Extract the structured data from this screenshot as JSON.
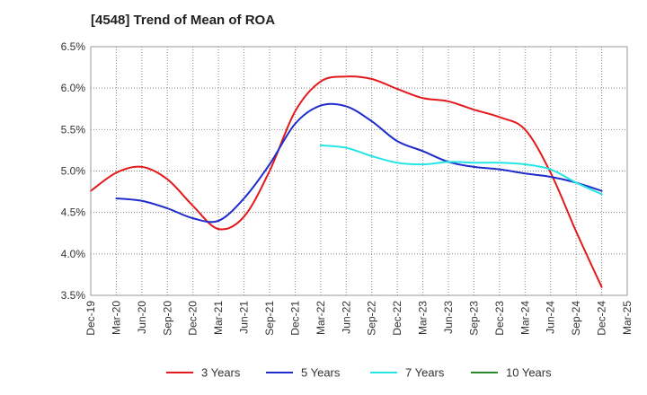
{
  "chart_data": {
    "type": "line",
    "title": "[4548]  Trend of Mean of ROA",
    "xlabel": "",
    "ylabel": "",
    "ylim": [
      3.5,
      6.5
    ],
    "y_ticks": [
      3.5,
      4.0,
      4.5,
      5.0,
      5.5,
      6.0,
      6.5
    ],
    "y_tick_labels": [
      "3.5%",
      "4.0%",
      "4.5%",
      "5.0%",
      "5.5%",
      "6.0%",
      "6.5%"
    ],
    "x_tick_labels": [
      "Dec-19",
      "Mar-20",
      "Jun-20",
      "Sep-20",
      "Dec-20",
      "Mar-21",
      "Jun-21",
      "Sep-21",
      "Dec-21",
      "Mar-22",
      "Jun-22",
      "Sep-22",
      "Dec-22",
      "Mar-23",
      "Jun-23",
      "Sep-23",
      "Dec-23",
      "Mar-24",
      "Jun-24",
      "Sep-24",
      "Dec-24",
      "Mar-25"
    ],
    "grid": true,
    "legend_position": "bottom",
    "series": [
      {
        "name": "3 Years",
        "color": "#e31a1c",
        "points": [
          [
            0,
            4.76
          ],
          [
            1,
            4.98
          ],
          [
            2,
            5.05
          ],
          [
            3,
            4.9
          ],
          [
            4,
            4.58
          ],
          [
            5,
            4.3
          ],
          [
            6,
            4.45
          ],
          [
            7,
            5.0
          ],
          [
            8,
            5.72
          ],
          [
            9,
            6.08
          ],
          [
            10,
            6.14
          ],
          [
            11,
            6.11
          ],
          [
            12,
            5.99
          ],
          [
            13,
            5.88
          ],
          [
            14,
            5.84
          ],
          [
            15,
            5.74
          ],
          [
            16,
            5.65
          ],
          [
            17,
            5.5
          ],
          [
            18,
            4.98
          ],
          [
            19,
            4.27
          ],
          [
            20,
            3.6
          ]
        ]
      },
      {
        "name": "5 Years",
        "color": "#1f2ccc",
        "points": [
          [
            1,
            4.67
          ],
          [
            2,
            4.64
          ],
          [
            3,
            4.55
          ],
          [
            4,
            4.43
          ],
          [
            5,
            4.4
          ],
          [
            6,
            4.67
          ],
          [
            7,
            5.08
          ],
          [
            8,
            5.57
          ],
          [
            9,
            5.79
          ],
          [
            10,
            5.78
          ],
          [
            11,
            5.6
          ],
          [
            12,
            5.36
          ],
          [
            13,
            5.24
          ],
          [
            14,
            5.11
          ],
          [
            15,
            5.05
          ],
          [
            16,
            5.02
          ],
          [
            17,
            4.97
          ],
          [
            18,
            4.93
          ],
          [
            19,
            4.86
          ],
          [
            20,
            4.76
          ]
        ]
      },
      {
        "name": "7 Years",
        "color": "#26e5e5",
        "points": [
          [
            9,
            5.31
          ],
          [
            10,
            5.28
          ],
          [
            11,
            5.18
          ],
          [
            12,
            5.1
          ],
          [
            13,
            5.08
          ],
          [
            14,
            5.11
          ],
          [
            15,
            5.1
          ],
          [
            16,
            5.1
          ],
          [
            17,
            5.08
          ],
          [
            18,
            5.02
          ],
          [
            19,
            4.86
          ],
          [
            20,
            4.72
          ]
        ]
      },
      {
        "name": "10 Years",
        "color": "#2a8a2a",
        "points": []
      }
    ]
  }
}
